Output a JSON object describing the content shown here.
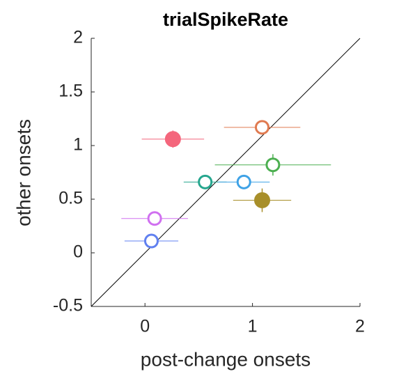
{
  "chart_data": {
    "type": "scatter",
    "title": "trialSpikeRate",
    "xlabel": "post-change onsets",
    "ylabel": "other onsets",
    "xlim": [
      -0.5,
      2
    ],
    "ylim": [
      -0.5,
      2
    ],
    "xticks": [
      0,
      1,
      2
    ],
    "yticks": [
      -0.5,
      0,
      0.5,
      1,
      1.5,
      2
    ],
    "x": [
      0.26,
      1.09,
      1.19,
      0.56,
      0.92,
      1.09,
      0.09,
      0.06
    ],
    "values": [
      1.06,
      1.17,
      0.82,
      0.66,
      0.66,
      0.49,
      0.32,
      0.11
    ],
    "xerr": [
      0.29,
      0.355,
      0.54,
      0.2,
      0.24,
      0.27,
      0.31,
      0.25
    ],
    "yerr": [
      0.08,
      0.06,
      0.1,
      0.05,
      0.04,
      0.11,
      0.05,
      0.04
    ],
    "colors": [
      "#f4667c",
      "#e07a50",
      "#4caf50",
      "#26a68e",
      "#3fa2e6",
      "#a88f2a",
      "#d070f0",
      "#6080f0"
    ],
    "filled": [
      true,
      false,
      false,
      false,
      false,
      true,
      false,
      false
    ],
    "diagonal": true
  }
}
